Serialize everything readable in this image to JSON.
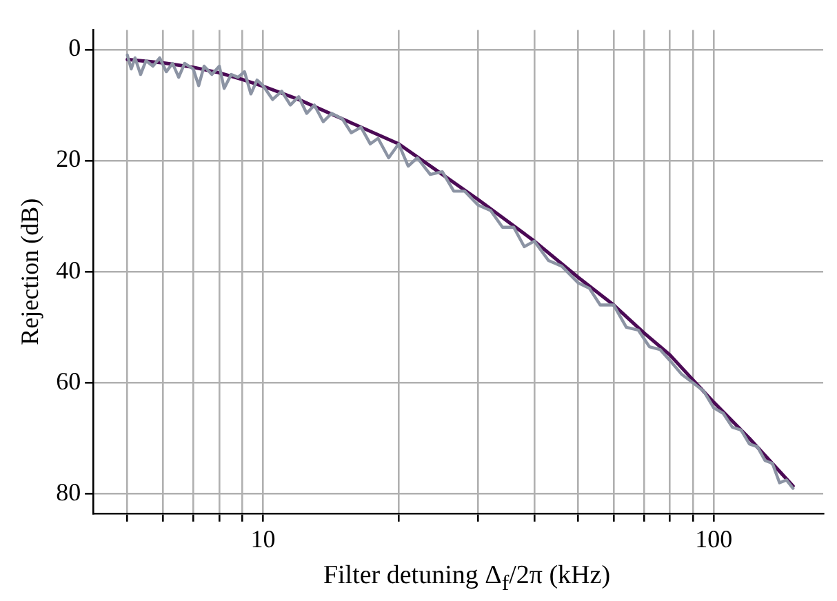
{
  "chart_data": {
    "type": "line",
    "xlabel": "Filter detuning Δ$_{f}$/2π (kHz)",
    "ylabel": "Rejection (dB)",
    "log": "x",
    "xlim": [
      4.2,
      175
    ],
    "ylim": [
      83.5,
      -3.5
    ],
    "xticks": [
      {
        "value": 5,
        "label": null
      },
      {
        "value": 6,
        "label": null
      },
      {
        "value": 7,
        "label": null
      },
      {
        "value": 8,
        "label": null
      },
      {
        "value": 9,
        "label": null
      },
      10,
      {
        "value": 20,
        "label": null
      },
      {
        "value": 30,
        "label": null
      },
      {
        "value": 40,
        "label": null
      },
      {
        "value": 50,
        "label": null
      },
      {
        "value": 60,
        "label": null
      },
      {
        "value": 70,
        "label": null
      },
      {
        "value": 80,
        "label": null
      },
      {
        "value": 90,
        "label": null
      },
      100
    ],
    "yticks": [
      0,
      20,
      40,
      60,
      80
    ],
    "grid": true,
    "legend": false,
    "marker": "none",
    "line_style": "solid",
    "series": [
      {
        "color": "#8c94a4",
        "x": [
          5,
          5.1,
          5.2,
          5.35,
          5.5,
          5.7,
          5.9,
          6.1,
          6.3,
          6.5,
          6.7,
          7,
          7.2,
          7.4,
          7.7,
          8,
          8.2,
          8.5,
          8.8,
          9.1,
          9.4,
          9.7,
          10,
          10.5,
          11,
          11.5,
          12,
          12.5,
          13,
          13.6,
          14.2,
          15,
          15.7,
          16.5,
          17.3,
          18,
          19,
          20,
          21,
          22,
          23.5,
          25,
          26.5,
          28,
          30,
          32,
          34,
          36,
          38,
          40,
          43,
          46,
          50,
          53,
          56,
          60,
          64,
          68,
          72,
          76,
          80,
          85,
          90,
          95,
          100,
          105,
          110,
          115,
          120,
          125,
          130,
          135,
          140,
          145,
          150
        ],
        "values": [
          1,
          3.5,
          1.5,
          4.5,
          2,
          3,
          1.5,
          4,
          2.5,
          5,
          2.5,
          3.5,
          6.5,
          3,
          4.5,
          3,
          7,
          4.5,
          5,
          4,
          8,
          5.5,
          6.5,
          9,
          7.5,
          10,
          8.5,
          11.5,
          10,
          13,
          11.5,
          12.5,
          15,
          14,
          17,
          16,
          19.5,
          17,
          21,
          19.5,
          22.5,
          22,
          25.5,
          25.5,
          28,
          29,
          32,
          32,
          35.5,
          34.5,
          38,
          39,
          42,
          43,
          46,
          46,
          50,
          50.5,
          53.5,
          54,
          56,
          58.5,
          60,
          61.5,
          64.5,
          65.5,
          68,
          68.5,
          71,
          71.5,
          74,
          74.5,
          78,
          77.5,
          79
        ]
      },
      {
        "color": "#4b0a55",
        "x": [
          5,
          6,
          7,
          8,
          9,
          10,
          12,
          15,
          20,
          25,
          30,
          40,
          50,
          60,
          70,
          80,
          90,
          100,
          120,
          150
        ],
        "values": [
          1.8,
          2.4,
          3.2,
          4.2,
          5.4,
          6.6,
          9,
          12.5,
          17,
          22.5,
          27,
          34.5,
          41,
          46,
          51,
          55,
          59.5,
          63.5,
          70,
          78.6
        ]
      }
    ]
  }
}
